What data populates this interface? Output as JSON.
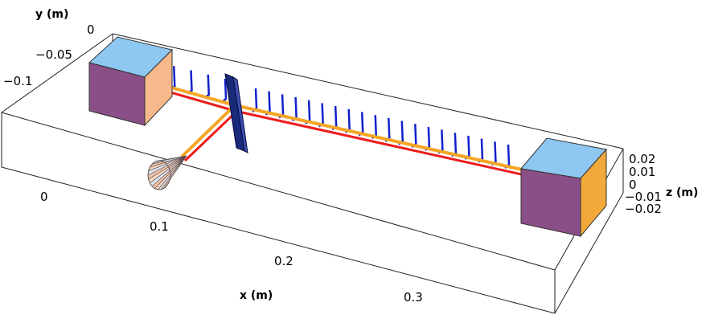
{
  "figure": {
    "y_axis": {
      "title": "y (m)",
      "ticks": [
        "0",
        "−0.05",
        "−0.1"
      ]
    },
    "x_axis": {
      "title": "x (m)",
      "ticks": [
        "0",
        "0.1",
        "0.2",
        "0.3"
      ]
    },
    "z_axis": {
      "title": "z (m)",
      "ticks": [
        "0.02",
        "0.01",
        "0",
        "−0.01",
        "−0.02"
      ]
    }
  },
  "colors": {
    "block_side": "#8a4f86",
    "block_top": "#8ec8f2",
    "block_front_left": "#f7b98c",
    "block_front_right": "#f2a93c",
    "beam_red": "#ee1c1c",
    "beam_orange": "#f5a623",
    "field_vectors": "#1020cc",
    "mirror": "#1a2a7a"
  },
  "icons": {
    "left_block": "cube-block",
    "right_block": "cube-block",
    "mirror": "beam-splitter-plate",
    "detector": "cone-detector"
  }
}
